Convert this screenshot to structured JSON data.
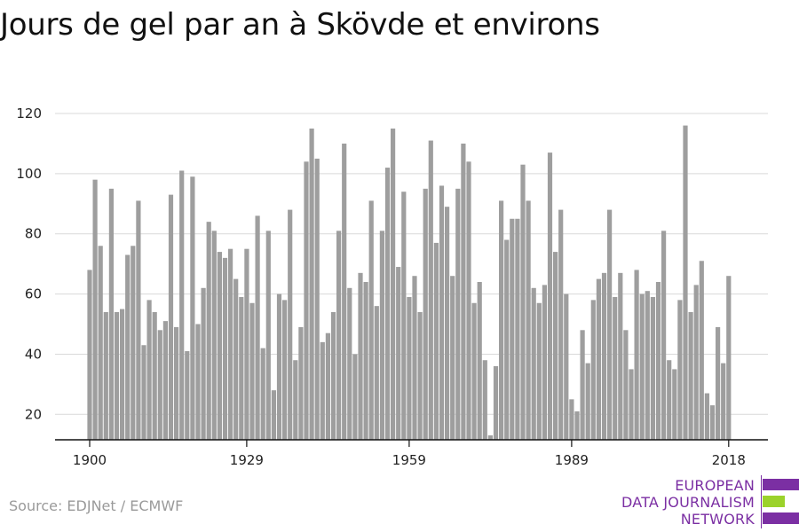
{
  "title": "Jours de gel par an à Skövde et environs",
  "source": "Source: EDJNet / ECMWF",
  "logo": {
    "line1": "EUROPEAN",
    "line2": "DATA JOURNALISM",
    "line3": "NETWORK"
  },
  "colors": {
    "bar": "#9e9e9e",
    "grid": "#d9d9d9",
    "axis": "#111111",
    "logo_purple": "#7b2fa3",
    "logo_green": "#9bd22b"
  },
  "chart_data": {
    "type": "bar",
    "title": "Jours de gel par an à Skövde et environs",
    "xlabel": "",
    "ylabel": "",
    "ylim": [
      10,
      120
    ],
    "yticks": [
      20,
      40,
      60,
      80,
      100,
      120
    ],
    "xticks": [
      "1900",
      "1929",
      "1959",
      "1989",
      "2018"
    ],
    "grid": true,
    "x_start": 1900,
    "x_end": 2018,
    "values": [
      68,
      98,
      76,
      54,
      95,
      54,
      55,
      73,
      76,
      91,
      43,
      58,
      54,
      48,
      51,
      93,
      49,
      101,
      41,
      99,
      50,
      62,
      84,
      81,
      74,
      72,
      75,
      65,
      59,
      75,
      57,
      86,
      42,
      81,
      28,
      60,
      58,
      88,
      38,
      49,
      104,
      115,
      105,
      44,
      47,
      54,
      81,
      110,
      62,
      40,
      67,
      64,
      91,
      56,
      81,
      102,
      115,
      69,
      94,
      59,
      66,
      54,
      95,
      111,
      77,
      96,
      89,
      66,
      95,
      110,
      104,
      57,
      64,
      38,
      13,
      36,
      91,
      78,
      85,
      85,
      103,
      91,
      62,
      57,
      63,
      107,
      74,
      88,
      60,
      25,
      21,
      48,
      37,
      58,
      65,
      67,
      88,
      59,
      67,
      48,
      35,
      68,
      60,
      61,
      59,
      64,
      81,
      38,
      35,
      58,
      116,
      54,
      63,
      71,
      27,
      23,
      49,
      37,
      66
    ]
  }
}
